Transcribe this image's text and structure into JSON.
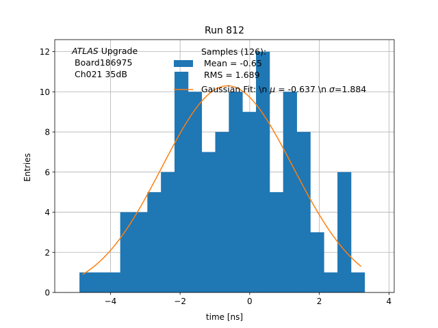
{
  "chart_data": {
    "type": "bar",
    "title": "Run 812",
    "xlabel": "time [ns]",
    "ylabel": "Entries",
    "xlim": [
      -5.6,
      4.15
    ],
    "ylim": [
      0,
      12.6
    ],
    "xticks": [
      -4,
      -2,
      0,
      2,
      4
    ],
    "yticks": [
      0,
      2,
      4,
      6,
      8,
      10,
      12
    ],
    "xtick_labels": [
      "−4",
      "−2",
      "0",
      "2",
      "4"
    ],
    "ytick_labels": [
      "0",
      "2",
      "4",
      "6",
      "8",
      "10",
      "12"
    ],
    "grid": true,
    "histogram": {
      "name_lines": [
        "Samples (126):",
        " Mean = -0.65",
        " RMS = 1.689"
      ],
      "color": "#1f77b4",
      "bin_edges": [
        -4.89,
        -4.5,
        -4.11,
        -3.72,
        -3.33,
        -2.94,
        -2.55,
        -2.16,
        -1.77,
        -1.38,
        -0.99,
        -0.6,
        -0.21,
        0.18,
        0.57,
        0.96,
        1.35,
        1.74,
        2.13,
        2.52,
        2.91,
        3.3
      ],
      "counts": [
        1,
        1,
        1,
        4,
        4,
        5,
        6,
        11,
        10,
        7,
        8,
        10,
        9,
        12,
        5,
        10,
        8,
        3,
        1,
        6,
        1
      ]
    },
    "fit": {
      "name": "Gaussian Fit: \\n $\\mu$ = -0.637 \\n $\\sigma$=1.884",
      "label_prefix": "Gaussian Fit: \\n ",
      "mu_symbol": "μ",
      "label_middle": " = -0.637 \\n ",
      "sigma_symbol": "σ",
      "label_suffix": "=1.884",
      "color": "#ff7f0e",
      "amplitude": 10.3,
      "mu": -0.637,
      "sigma": 1.884,
      "x_range": [
        -4.8,
        3.2
      ]
    },
    "annotation": {
      "atlas": "ATLAS",
      "upgrade": " Upgrade",
      "line2": "Board186975",
      "line3": "Ch021 35dB"
    },
    "legend_position": "upper-right"
  }
}
